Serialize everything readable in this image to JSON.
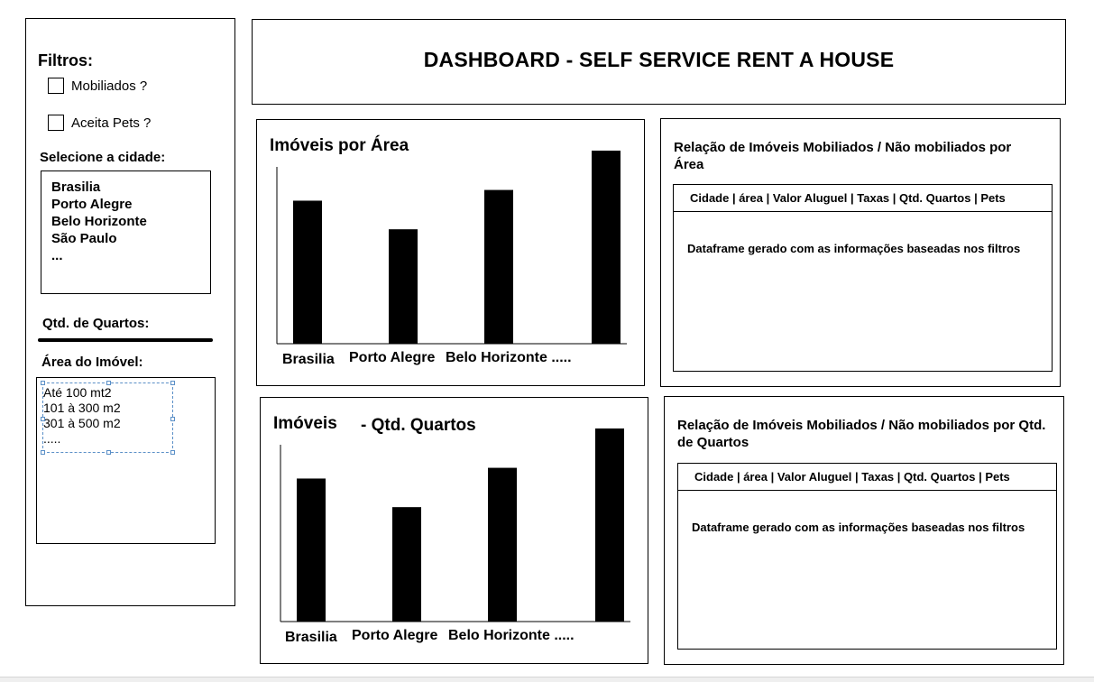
{
  "sidebar": {
    "filters_title": "Filtros:",
    "checkbox_furnished": "Mobiliados ?",
    "checkbox_pets": "Aceita Pets ?",
    "city_label": "Selecione a cidade:",
    "cities": [
      "Brasilia",
      "Porto Alegre",
      "Belo Horizonte",
      "São Paulo",
      "..."
    ],
    "rooms_label": "Qtd. de Quartos:",
    "area_label": "Área do Imóvel:",
    "area_options": [
      "Até 100 mt2",
      "101 à 300 m2",
      "301 à 500 m2",
      "....."
    ]
  },
  "header": {
    "title": "DASHBOARD - SELF SERVICE RENT A HOUSE"
  },
  "charts": {
    "area": {
      "title": "Imóveis por Área",
      "x_labels": [
        "Brasilia",
        "Porto Alegre",
        "Belo Horizonte ....."
      ]
    },
    "rooms": {
      "title_part1": "Imóveis",
      "title_part2": "- Qtd. Quartos",
      "x_labels": [
        "Brasilia",
        "Porto Alegre",
        "Belo Horizonte ....."
      ]
    }
  },
  "tables": {
    "area": {
      "title": "Relação de Imóveis Mobiliados / Não mobiliados por Área",
      "header": "Cidade | área | Valor Aluguel | Taxas | Qtd. Quartos | Pets",
      "body": "Dataframe gerado com as informações baseadas nos filtros"
    },
    "rooms": {
      "title": "Relação de Imóveis Mobiliados / Não mobiliados por Qtd. de Quartos",
      "header": "Cidade | área | Valor Aluguel | Taxas | Qtd. Quartos | Pets",
      "body": "Dataframe gerado com as informações baseadas nos filtros"
    }
  },
  "chart_data": [
    {
      "type": "bar",
      "title": "Imóveis por Área",
      "categories": [
        "Brasilia",
        "Porto Alegre",
        "Belo Horizonte",
        "",
        ""
      ],
      "values": [
        80,
        64,
        86,
        0,
        108
      ],
      "ylim": [
        0,
        110
      ],
      "grid": false
    },
    {
      "type": "bar",
      "title": "Imóveis - Qtd. Quartos",
      "categories": [
        "Brasilia",
        "Porto Alegre",
        "Belo Horizonte",
        "",
        ""
      ],
      "values": [
        80,
        64,
        86,
        0,
        108
      ],
      "ylim": [
        0,
        110
      ],
      "grid": false
    }
  ]
}
